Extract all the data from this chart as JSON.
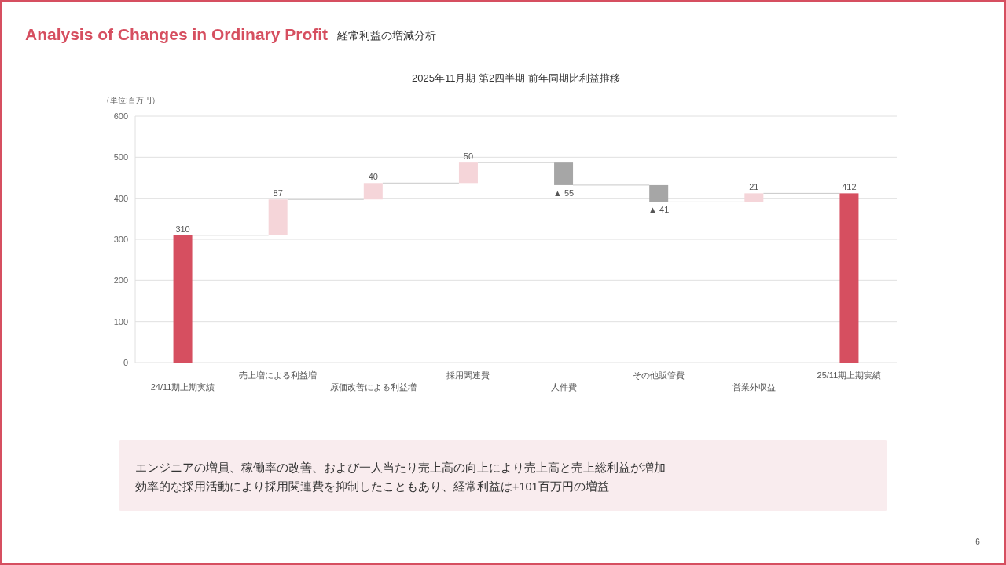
{
  "chart_data": {
    "type": "bar",
    "title": "Analysis of Changes in Ordinary Profit",
    "subtitle": "経常利益の増減分析",
    "ylabel": "（単位:百万円）",
    "annotations": [
      "2025年11月期  第2四半期  前年同期比利益推移",
      "エンジニアの増員、稼働率の改善、および一人当たり売上高の向上により売上高と売上総利益が増加",
      "効率的な採用活動により採用関連費を抑制したこともあり、経常利益は+101百万円の増益",
      "6"
    ],
    "categories": [
      "24/11期上期実績",
      "売上増による利益増",
      "原価改善による利益増",
      "採用関連費",
      "人件費",
      "その他販管費",
      "営業外収益",
      "25/11期上期実績"
    ],
    "values": [
      310,
      87,
      40,
      50,
      -55,
      -41,
      21,
      412
    ],
    "base": [
      0,
      310,
      397,
      437,
      487,
      432,
      391,
      0
    ],
    "colors": [
      "#d64f60",
      "#f5d5d9",
      "#f5d5d9",
      "#f5d5d9",
      "#a6a6a6",
      "#a6a6a6",
      "#f5d5d9",
      "#d64f60"
    ],
    "value_labels": [
      "310",
      "87",
      "40",
      "50",
      "▲ 55",
      "▲ 41",
      "21",
      "412"
    ],
    "ylim": [
      0,
      600
    ],
    "yticks": [
      0,
      100,
      200,
      300,
      400,
      500,
      600
    ],
    "grid": "y"
  }
}
